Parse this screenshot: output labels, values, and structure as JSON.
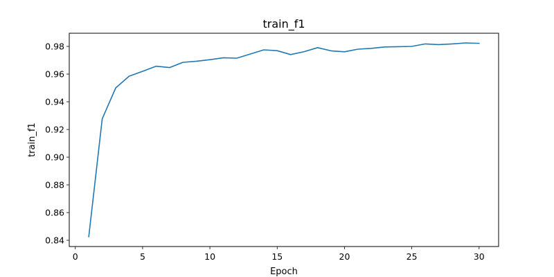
{
  "chart_data": {
    "type": "line",
    "title": "train_f1",
    "xlabel": "Epoch",
    "ylabel": "train_f1",
    "xlim": [
      -0.45,
      31.45
    ],
    "ylim": [
      0.8355,
      0.9895
    ],
    "x_ticks": [
      0,
      5,
      10,
      15,
      20,
      25,
      30
    ],
    "y_ticks": [
      0.84,
      0.86,
      0.88,
      0.9,
      0.92,
      0.94,
      0.96,
      0.98
    ],
    "y_tick_labels": [
      "0.84",
      "0.86",
      "0.88",
      "0.90",
      "0.92",
      "0.94",
      "0.96",
      "0.98"
    ],
    "grid": false,
    "series": [
      {
        "color": "#1f77b4",
        "x": [
          1,
          2,
          3,
          4,
          5,
          6,
          7,
          8,
          9,
          10,
          11,
          12,
          13,
          14,
          15,
          16,
          17,
          18,
          19,
          20,
          21,
          22,
          23,
          24,
          25,
          26,
          27,
          28,
          29,
          30
        ],
        "values": [
          0.8426,
          0.9277,
          0.95,
          0.9585,
          0.962,
          0.9657,
          0.9647,
          0.9685,
          0.9693,
          0.9704,
          0.9718,
          0.9715,
          0.9745,
          0.9775,
          0.9769,
          0.9741,
          0.9762,
          0.9791,
          0.9768,
          0.9761,
          0.978,
          0.9786,
          0.9796,
          0.9798,
          0.98,
          0.9818,
          0.9813,
          0.9818,
          0.9825,
          0.9822
        ]
      }
    ]
  }
}
